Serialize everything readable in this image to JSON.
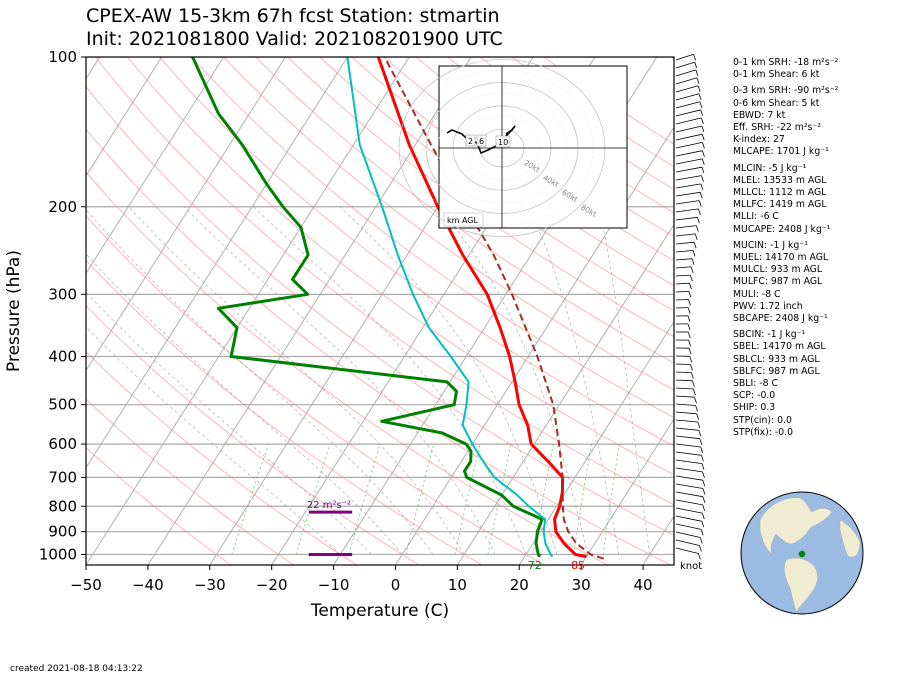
{
  "header": {
    "title_line1": "CPEX-AW 15-3km  67h fcst  Station: stmartin",
    "title_line2": "Init: 2021081800  Valid: 202108201900 UTC"
  },
  "footer": {
    "created": "created 2021-08-18 04:13:22"
  },
  "stats": [
    "0-1 km SRH: -18 m²s⁻²",
    "0-1 km Shear: 6 kt",
    "",
    "0-3 km SRH: -90 m²s⁻²",
    "0-6 km Shear: 5 kt",
    "EBWD: 7 kt",
    "Eff. SRH: -22 m²s⁻²",
    "K-index: 27",
    "MLCAPE: 1701 J kg⁻¹",
    "",
    "MLCIN: -5 J kg⁻¹",
    "MLEL: 13533 m AGL",
    "MLLCL: 1112 m AGL",
    "MLLFC: 1419 m AGL",
    "MLLI: -6 C",
    "MUCAPE: 2408 J kg⁻¹",
    "",
    "MUCIN: -1 J kg⁻¹",
    "MUEL: 14170 m AGL",
    "MULCL: 933 m AGL",
    "MULFC: 987 m AGL",
    "MULI: -8 C",
    "PWV: 1.72 inch",
    "SBCAPE: 2408 J kg⁻¹",
    "",
    "SBCIN: -1 J kg⁻¹",
    "SBEL: 14170 m AGL",
    "SBLCL: 933 m AGL",
    "SBLFC: 987 m AGL",
    "SBLI: -8 C",
    "SCP: -0.0",
    "SHIP: 0.3",
    "STP(cin): 0.0",
    "STP(fix): -0.0"
  ],
  "chart_data": {
    "type": "line",
    "subtype": "skew-T log-p",
    "xlabel": "Temperature (C)",
    "ylabel": "Pressure (hPa)",
    "xlim": [
      -50,
      45
    ],
    "ylim": [
      1050,
      100
    ],
    "yscale": "log",
    "x_ticks": [
      -50,
      -40,
      -30,
      -20,
      -10,
      0,
      10,
      20,
      30,
      40
    ],
    "x_tick_labels": [
      "−50",
      "−40",
      "−30",
      "−20",
      "−10",
      "0",
      "10",
      "20",
      "30",
      "40"
    ],
    "y_ticks": [
      100,
      200,
      300,
      400,
      500,
      600,
      700,
      800,
      900,
      1000
    ],
    "y_tick_labels": [
      "100",
      "200",
      "300",
      "400",
      "500",
      "600",
      "700",
      "800",
      "900",
      "1000"
    ],
    "colors": {
      "temperature": "#ff0000",
      "dewpoint": "#008000",
      "wetbulb": "#00bfbf",
      "parcel": "#a52a2a",
      "srh_bar": "#800080",
      "isotherm": "#b0b0b0",
      "dry_adiabat": "#f08080",
      "moist_adiabat": "#999999",
      "mixing_ratio": "#2ca02c"
    },
    "series": [
      {
        "key": "temperature",
        "p": [
          1010,
          1000,
          950,
          900,
          850,
          800,
          750,
          700,
          650,
          600,
          550,
          500,
          450,
          400,
          350,
          300,
          250,
          200,
          150,
          100
        ],
        "t": [
          30,
          28,
          25,
          22.5,
          21,
          20.5,
          19.5,
          18,
          14,
          9.5,
          7,
          3.5,
          0.5,
          -3,
          -7.5,
          -13,
          -21,
          -30,
          -41,
          -55
        ]
      },
      {
        "key": "dewpoint",
        "p": [
          1010,
          1000,
          950,
          900,
          850,
          800,
          760,
          700,
          680,
          650,
          620,
          600,
          570,
          540,
          500,
          470,
          450,
          400,
          350,
          320,
          300,
          280,
          250,
          220,
          200,
          180,
          150,
          130,
          100
        ],
        "t": [
          22.5,
          22,
          20.5,
          19.5,
          19,
          13,
          10,
          2.5,
          1.5,
          1.5,
          0.5,
          -1,
          -6,
          -17,
          -7,
          -8,
          -10.5,
          -48,
          -50,
          -55,
          -42,
          -46,
          -46,
          -50,
          -55,
          -60,
          -68,
          -75,
          -85
        ]
      },
      {
        "key": "wetbulb",
        "p": [
          1010,
          1000,
          950,
          900,
          850,
          800,
          760,
          700,
          650,
          600,
          550,
          500,
          450,
          400,
          350,
          300,
          250,
          200,
          150,
          100
        ],
        "t": [
          24.5,
          24,
          22,
          20.5,
          19.5,
          15.5,
          12.5,
          7,
          3.5,
          0,
          -3.5,
          -5,
          -7,
          -12.5,
          -19,
          -25,
          -31.5,
          -39,
          -49,
          -60
        ]
      },
      {
        "key": "parcel",
        "p": [
          1020,
          1000,
          950,
          900,
          850,
          800,
          700,
          600,
          500,
          400,
          300,
          250,
          200,
          150,
          100
        ],
        "t": [
          33,
          30.5,
          27,
          24.5,
          22.5,
          21,
          18,
          14,
          9,
          1.5,
          -9,
          -16,
          -25.5,
          -37.5,
          -54
        ]
      }
    ],
    "srh_bars": [
      {
        "p": 1000,
        "t_range": [
          -14,
          -7
        ]
      },
      {
        "p": 822,
        "t_range": [
          -14,
          -7
        ],
        "label": "22 m²s⁻²"
      }
    ],
    "surface_labels": [
      {
        "text": "72",
        "t": 22.5,
        "key": "dewpoint"
      },
      {
        "text": "85",
        "t": 29.5,
        "key": "temperature"
      }
    ],
    "wind_unit_label": "knot",
    "hodograph": {
      "rings_kt": [
        20,
        40,
        60,
        80
      ],
      "ring_labels": [
        "20kt",
        "40kt",
        "60kt",
        "80kt"
      ],
      "height_markers": [
        "2",
        "6",
        "10"
      ],
      "legend": "km AGL"
    }
  }
}
